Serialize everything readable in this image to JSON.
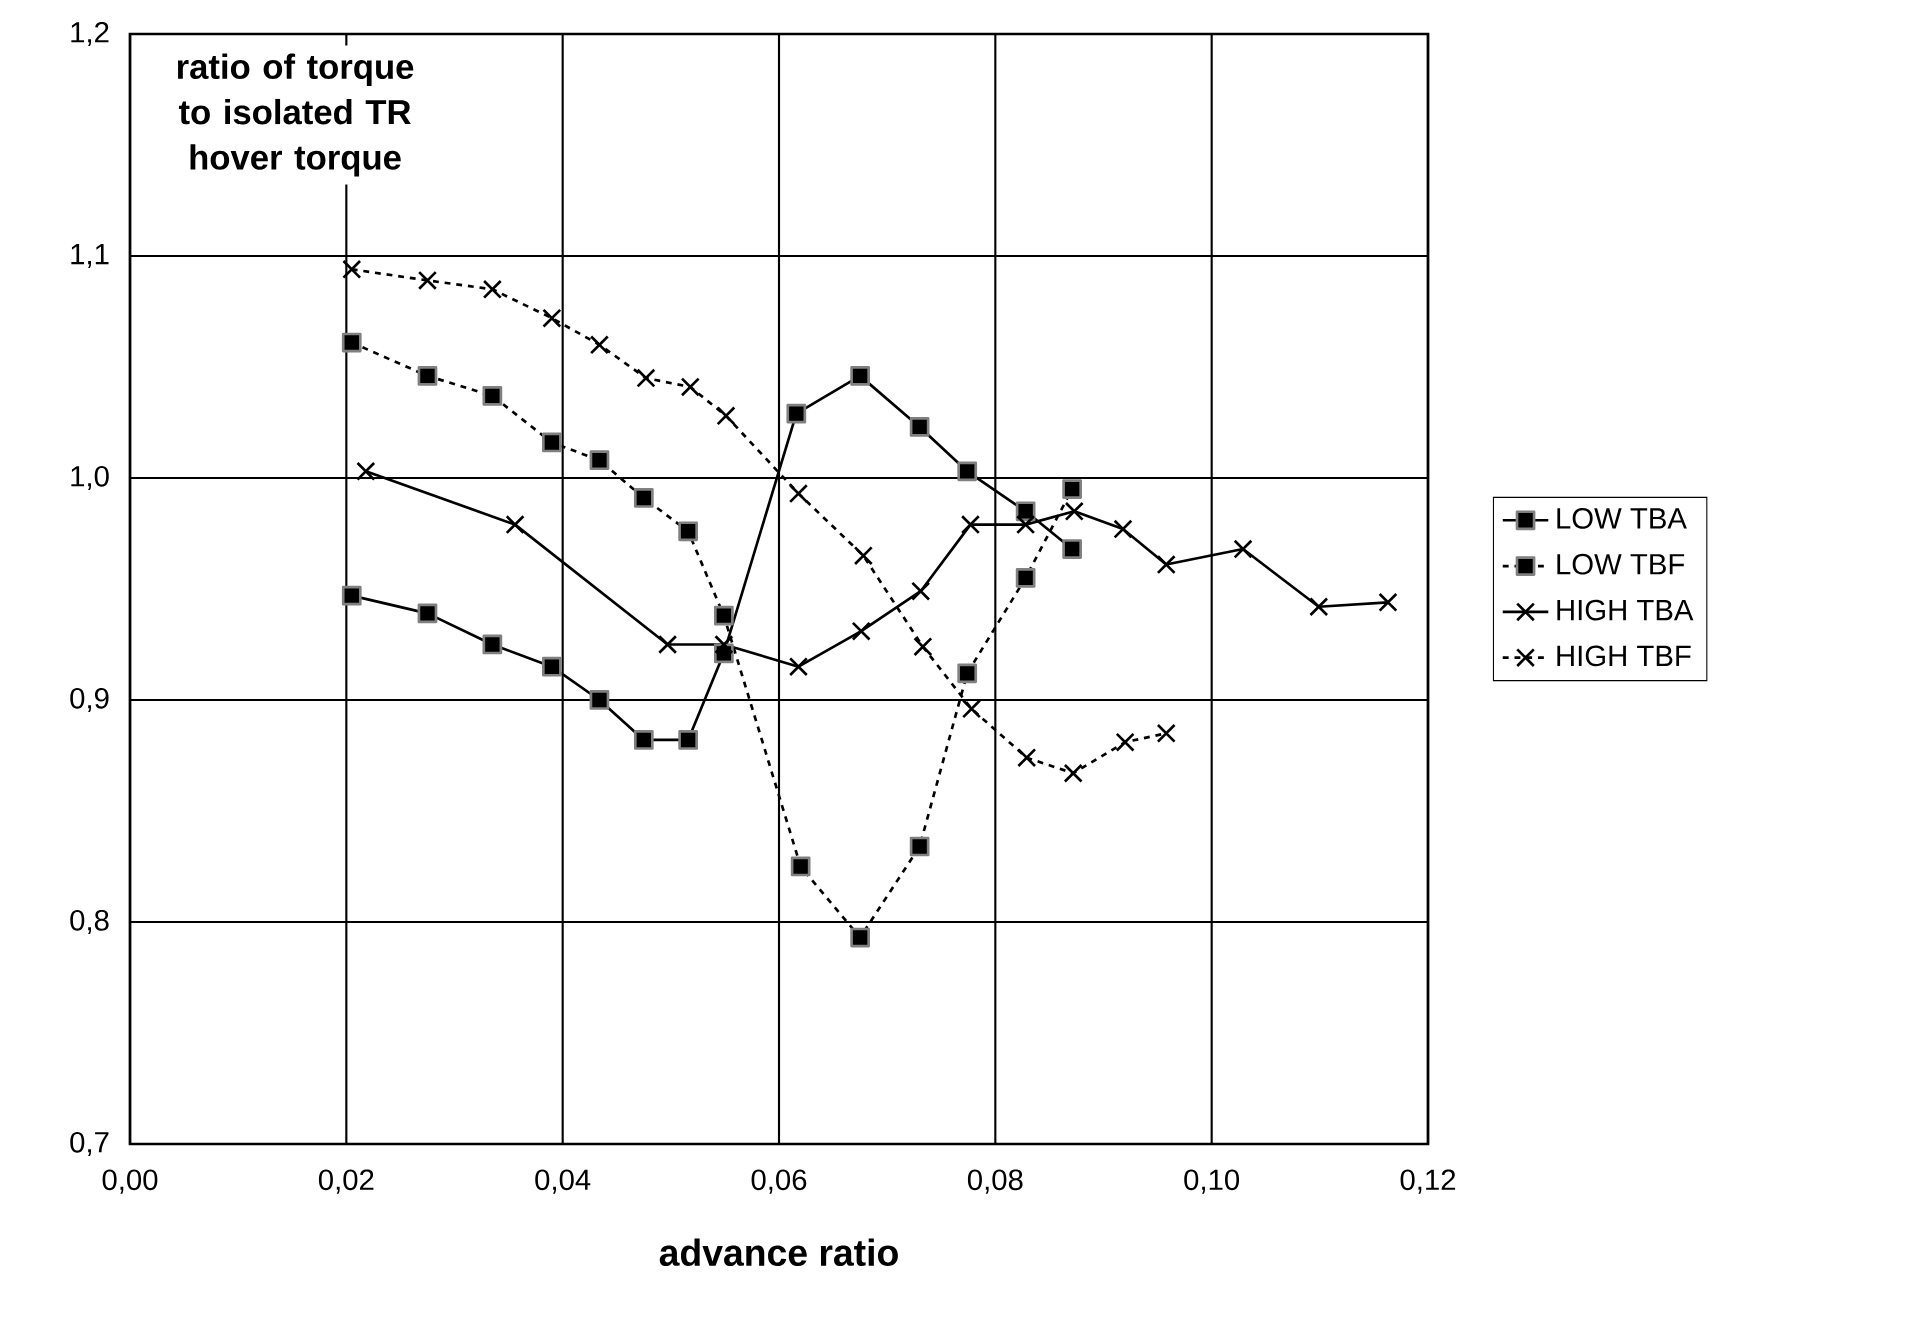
{
  "chart_data": {
    "type": "line",
    "xlabel": "advance ratio",
    "ylabel": "ratio of torque to isolated TR hover torque",
    "xlim": [
      0,
      0.12
    ],
    "ylim": [
      0.7,
      1.2
    ],
    "xticks": [
      {
        "value": 0,
        "label": "0,00"
      },
      {
        "value": 0.02,
        "label": "0,02"
      },
      {
        "value": 0.04,
        "label": "0,04"
      },
      {
        "value": 0.06,
        "label": "0,06"
      },
      {
        "value": 0.08,
        "label": "0,08"
      },
      {
        "value": 0.1,
        "label": "0,10"
      },
      {
        "value": 0.12,
        "label": "0,12"
      }
    ],
    "yticks": [
      {
        "value": 0.7,
        "label": "0,7"
      },
      {
        "value": 0.8,
        "label": "0,8"
      },
      {
        "value": 0.9,
        "label": "0,9"
      },
      {
        "value": 1.0,
        "label": "1,0"
      },
      {
        "value": 1.1,
        "label": "1,1"
      },
      {
        "value": 1.2,
        "label": "1,2"
      }
    ],
    "grid": true,
    "legend": "right",
    "series": [
      {
        "name": "LOW TBA",
        "color": "#000000",
        "marker": "square",
        "line_style": "solid",
        "x": [
          0.0205,
          0.0275,
          0.0335,
          0.039,
          0.0434,
          0.0475,
          0.0516,
          0.0549,
          0.0616,
          0.0675,
          0.073,
          0.0774,
          0.0828,
          0.0871
        ],
        "values": [
          0.947,
          0.939,
          0.925,
          0.915,
          0.9,
          0.882,
          0.882,
          0.921,
          1.029,
          1.046,
          1.023,
          1.003,
          0.985,
          0.968
        ]
      },
      {
        "name": "LOW TBF",
        "color": "#000000",
        "marker": "square",
        "line_style": "dashed",
        "x": [
          0.0205,
          0.0275,
          0.0335,
          0.039,
          0.0434,
          0.0475,
          0.0516,
          0.0549,
          0.062,
          0.0675,
          0.073,
          0.0774,
          0.0828,
          0.0871
        ],
        "values": [
          1.061,
          1.046,
          1.037,
          1.016,
          1.008,
          0.991,
          0.976,
          0.938,
          0.825,
          0.793,
          0.834,
          0.912,
          0.955,
          0.995
        ]
      },
      {
        "name": "HIGH TBA",
        "color": "#000000",
        "marker": "cross",
        "line_style": "solid",
        "x": [
          0.0218,
          0.0356,
          0.0497,
          0.0549,
          0.0618,
          0.0676,
          0.0731,
          0.0777,
          0.0828,
          0.0873,
          0.0918,
          0.0958,
          0.1029,
          0.1099,
          0.1163
        ],
        "values": [
          1.003,
          0.979,
          0.925,
          0.925,
          0.915,
          0.931,
          0.949,
          0.979,
          0.979,
          0.985,
          0.977,
          0.961,
          0.968,
          0.942,
          0.944
        ]
      },
      {
        "name": "HIGH TBF",
        "color": "#000000",
        "marker": "cross",
        "line_style": "dashed",
        "x": [
          0.0205,
          0.0275,
          0.0335,
          0.039,
          0.0434,
          0.0477,
          0.0518,
          0.0551,
          0.0618,
          0.0678,
          0.0733,
          0.0778,
          0.0829,
          0.0872,
          0.092,
          0.0958
        ],
        "values": [
          1.094,
          1.089,
          1.085,
          1.072,
          1.06,
          1.045,
          1.041,
          1.028,
          0.993,
          0.965,
          0.924,
          0.896,
          0.874,
          0.867,
          0.881,
          0.885
        ]
      }
    ]
  }
}
